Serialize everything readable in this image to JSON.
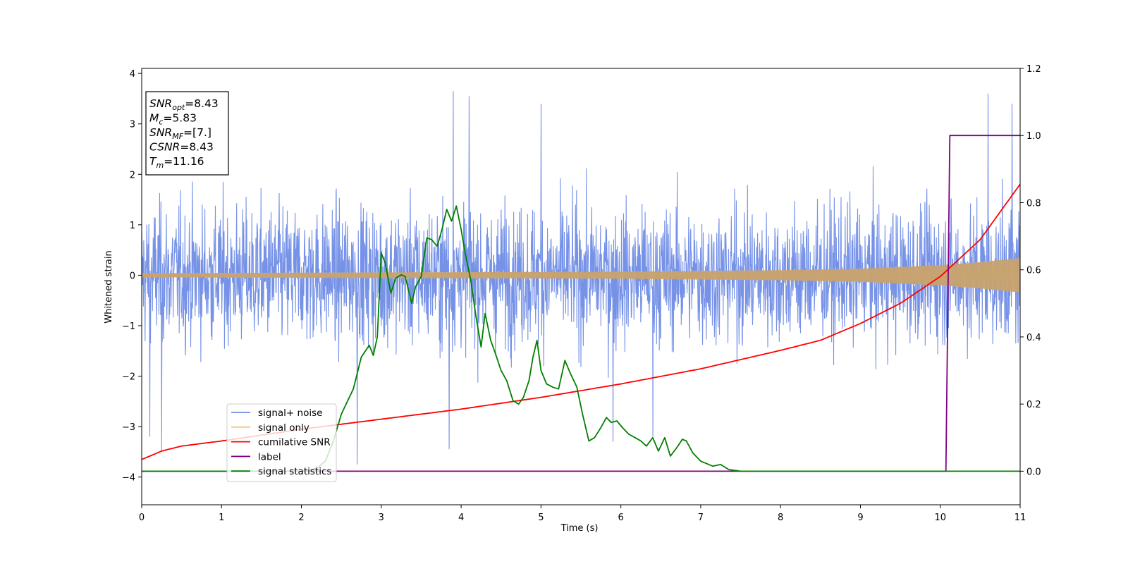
{
  "chart_data": {
    "type": "line",
    "xlabel": "Time (s)",
    "ylabel": "Whitened strain",
    "xlim": [
      0,
      11
    ],
    "ylim": [
      -4.55,
      4.1
    ],
    "y2lim": [
      -0.1,
      1.2
    ],
    "x_ticks": [
      "0",
      "1",
      "2",
      "3",
      "4",
      "5",
      "6",
      "7",
      "8",
      "9",
      "10",
      "11"
    ],
    "y_ticks": [
      "−4",
      "−3",
      "−2",
      "−1",
      "0",
      "1",
      "2",
      "3",
      "4"
    ],
    "y2_ticks": [
      "0.0",
      "0.2",
      "0.4",
      "0.6",
      "0.8",
      "1.0",
      "1.2"
    ],
    "grid": false,
    "legend_placement": "lower-left",
    "annotation": [
      {
        "sym": "SNR",
        "sub": "opt",
        "value": "=8.43"
      },
      {
        "sym": "M",
        "sub": "c",
        "value": "=5.83"
      },
      {
        "sym": "SNR",
        "sub": "MF",
        "value": "=[7.]"
      },
      {
        "sym": "CSNR",
        "sub": "",
        "value": "=8.43"
      },
      {
        "sym": "T",
        "sub": "m",
        "value": "=11.16"
      }
    ],
    "series": [
      {
        "name": "signal+ noise",
        "axis": "left",
        "color": "#6f8ce6",
        "style": "dense noise, approx. range -2.5 to 2.5, peaks to 3.65",
        "peaks": [
          [
            0.25,
            -3.5
          ],
          [
            0.1,
            -3.2
          ],
          [
            2.7,
            -3.75
          ],
          [
            3.9,
            3.65
          ],
          [
            3.85,
            -3.45
          ],
          [
            4.1,
            3.55
          ],
          [
            5.0,
            3.4
          ],
          [
            5.9,
            -3.3
          ],
          [
            6.4,
            -3.2
          ],
          [
            10.6,
            3.6
          ],
          [
            10.9,
            3.4
          ]
        ]
      },
      {
        "name": "signal only",
        "axis": "left",
        "color": "#f5c87a",
        "envelope": [
          [
            0,
            0.04
          ],
          [
            2,
            0.05
          ],
          [
            4,
            0.06
          ],
          [
            6,
            0.07
          ],
          [
            8,
            0.1
          ],
          [
            9,
            0.13
          ],
          [
            10,
            0.2
          ],
          [
            10.5,
            0.26
          ],
          [
            11,
            0.34
          ]
        ]
      },
      {
        "name": "cumilative SNR",
        "axis": "right",
        "color": "#ff0000",
        "x": [
          0,
          0.25,
          0.5,
          1,
          2,
          3,
          4,
          5,
          6,
          7,
          8,
          8.5,
          9,
          9.5,
          10,
          10.5,
          11
        ],
        "values": [
          0.035,
          0.06,
          0.075,
          0.09,
          0.125,
          0.155,
          0.185,
          0.22,
          0.26,
          0.305,
          0.36,
          0.39,
          0.44,
          0.5,
          0.58,
          0.69,
          0.855
        ]
      },
      {
        "name": "label",
        "axis": "right",
        "color": "#800080",
        "x": [
          0,
          10.07,
          10.12,
          11
        ],
        "values": [
          0.0,
          0.0,
          1.0,
          1.0
        ]
      },
      {
        "name": "signal statistics",
        "axis": "right",
        "color": "#008000",
        "x": [
          0,
          1,
          2,
          2.1,
          2.2,
          2.3,
          2.4,
          2.5,
          2.55,
          2.65,
          2.75,
          2.85,
          2.9,
          2.95,
          3.0,
          3.05,
          3.12,
          3.18,
          3.25,
          3.3,
          3.38,
          3.43,
          3.5,
          3.57,
          3.63,
          3.7,
          3.76,
          3.82,
          3.88,
          3.94,
          4.0,
          4.05,
          4.12,
          4.18,
          4.25,
          4.3,
          4.37,
          4.43,
          4.5,
          4.57,
          4.65,
          4.72,
          4.78,
          4.85,
          4.9,
          4.95,
          5.0,
          5.07,
          5.15,
          5.22,
          5.3,
          5.37,
          5.45,
          5.52,
          5.6,
          5.67,
          5.75,
          5.82,
          5.88,
          5.95,
          6.02,
          6.1,
          6.18,
          6.25,
          6.32,
          6.4,
          6.47,
          6.55,
          6.62,
          6.7,
          6.77,
          6.82,
          6.9,
          7.0,
          7.15,
          7.25,
          7.35,
          7.5,
          7.7,
          8,
          9,
          9.5,
          10,
          10.5,
          11
        ],
        "values": [
          0.0,
          0.0,
          0.0,
          0.003,
          0.01,
          0.03,
          0.09,
          0.17,
          0.195,
          0.245,
          0.34,
          0.375,
          0.345,
          0.4,
          0.65,
          0.62,
          0.53,
          0.575,
          0.585,
          0.58,
          0.5,
          0.55,
          0.58,
          0.695,
          0.69,
          0.67,
          0.72,
          0.78,
          0.745,
          0.79,
          0.72,
          0.65,
          0.57,
          0.47,
          0.37,
          0.47,
          0.39,
          0.35,
          0.3,
          0.27,
          0.21,
          0.2,
          0.22,
          0.27,
          0.34,
          0.39,
          0.3,
          0.26,
          0.25,
          0.245,
          0.33,
          0.29,
          0.25,
          0.17,
          0.09,
          0.1,
          0.13,
          0.16,
          0.145,
          0.15,
          0.13,
          0.11,
          0.1,
          0.09,
          0.075,
          0.1,
          0.06,
          0.1,
          0.045,
          0.07,
          0.095,
          0.09,
          0.055,
          0.03,
          0.015,
          0.02,
          0.005,
          0.0,
          0.0,
          0.0,
          0.0,
          0.0,
          0.0,
          0.0,
          0.0
        ]
      }
    ]
  }
}
